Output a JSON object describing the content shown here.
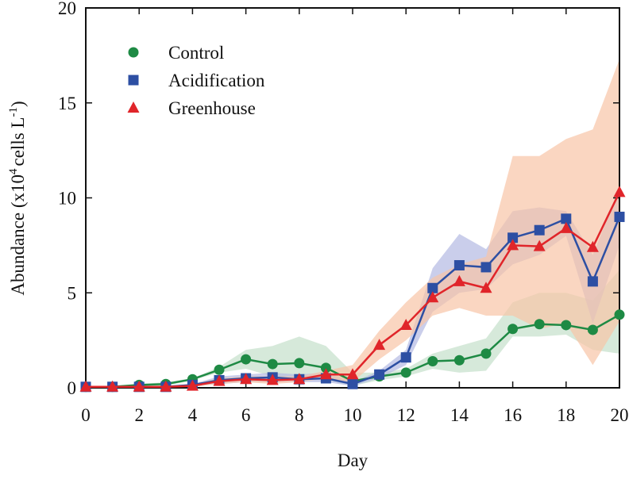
{
  "chart_data": {
    "type": "line",
    "xlabel": "Day",
    "ylabel_parts": [
      "Abundance (x10",
      "4",
      "cells L",
      "-1",
      ")"
    ],
    "x": [
      0,
      1,
      2,
      3,
      4,
      5,
      6,
      7,
      8,
      9,
      10,
      11,
      12,
      13,
      14,
      15,
      16,
      17,
      18,
      19,
      20
    ],
    "xlim": [
      0,
      20
    ],
    "xticks": [
      0,
      2,
      4,
      6,
      8,
      10,
      12,
      14,
      16,
      18,
      20
    ],
    "ylim": [
      0,
      20
    ],
    "yticks": [
      0,
      5,
      10,
      15,
      20
    ],
    "series": [
      {
        "name": "Control",
        "color": "#1e8a44",
        "band_color": "#c4e0cb",
        "marker": "circle",
        "values": [
          0.05,
          0.05,
          0.15,
          0.2,
          0.45,
          0.95,
          1.5,
          1.25,
          1.3,
          1.05,
          0.35,
          0.6,
          0.8,
          1.4,
          1.45,
          1.8,
          3.1,
          3.35,
          3.3,
          3.05,
          3.85
        ],
        "upper": [
          0.1,
          0.1,
          0.2,
          0.3,
          0.5,
          1.1,
          2.0,
          2.2,
          2.7,
          2.2,
          0.8,
          0.8,
          1.0,
          1.8,
          2.2,
          2.6,
          4.5,
          5.0,
          5.0,
          4.6,
          6.2
        ],
        "lower": [
          0,
          0,
          0.1,
          0.1,
          0.4,
          0.8,
          1.0,
          0.6,
          0.5,
          0.4,
          0.1,
          0.4,
          0.6,
          1.0,
          0.8,
          0.9,
          2.7,
          2.7,
          2.8,
          2.0,
          1.8
        ]
      },
      {
        "name": "Acidification",
        "color": "#2d4fa3",
        "band_color": "#b3b9e3",
        "marker": "square",
        "values": [
          0.05,
          0.05,
          0.05,
          0.05,
          0.15,
          0.4,
          0.5,
          0.55,
          0.45,
          0.5,
          0.2,
          0.7,
          1.6,
          5.25,
          6.45,
          6.35,
          7.9,
          8.3,
          8.9,
          5.6,
          9.0
        ],
        "upper": [
          0.1,
          0.1,
          0.1,
          0.1,
          0.2,
          0.6,
          0.7,
          0.8,
          0.7,
          0.8,
          0.3,
          0.9,
          2.0,
          6.3,
          8.1,
          7.3,
          9.3,
          9.5,
          9.3,
          7.0,
          10.5
        ],
        "lower": [
          0,
          0,
          0,
          0,
          0.1,
          0.2,
          0.3,
          0.3,
          0.3,
          0.3,
          0.1,
          0.5,
          1.2,
          4.0,
          5.0,
          5.2,
          6.5,
          7.0,
          8.0,
          3.4,
          7.5
        ]
      },
      {
        "name": "Greenhouse",
        "color": "#e0252a",
        "band_color": "#f8c4a6",
        "marker": "triangle",
        "values": [
          0.05,
          0.05,
          0.05,
          0.05,
          0.1,
          0.35,
          0.45,
          0.4,
          0.45,
          0.7,
          0.7,
          2.25,
          3.3,
          4.75,
          5.6,
          5.25,
          7.5,
          7.45,
          8.4,
          7.4,
          10.3
        ],
        "upper": [
          0.1,
          0.1,
          0.1,
          0.1,
          0.2,
          0.5,
          0.6,
          0.6,
          0.6,
          0.9,
          1.2,
          3.0,
          4.5,
          5.8,
          6.5,
          6.9,
          12.2,
          12.2,
          13.1,
          13.6,
          17.3
        ],
        "lower": [
          0,
          0,
          0,
          0,
          0.05,
          0.2,
          0.3,
          0.2,
          0.3,
          0.5,
          0.3,
          1.5,
          2.5,
          3.8,
          4.2,
          3.8,
          3.8,
          3.1,
          3.4,
          1.2,
          3.5
        ]
      }
    ]
  }
}
